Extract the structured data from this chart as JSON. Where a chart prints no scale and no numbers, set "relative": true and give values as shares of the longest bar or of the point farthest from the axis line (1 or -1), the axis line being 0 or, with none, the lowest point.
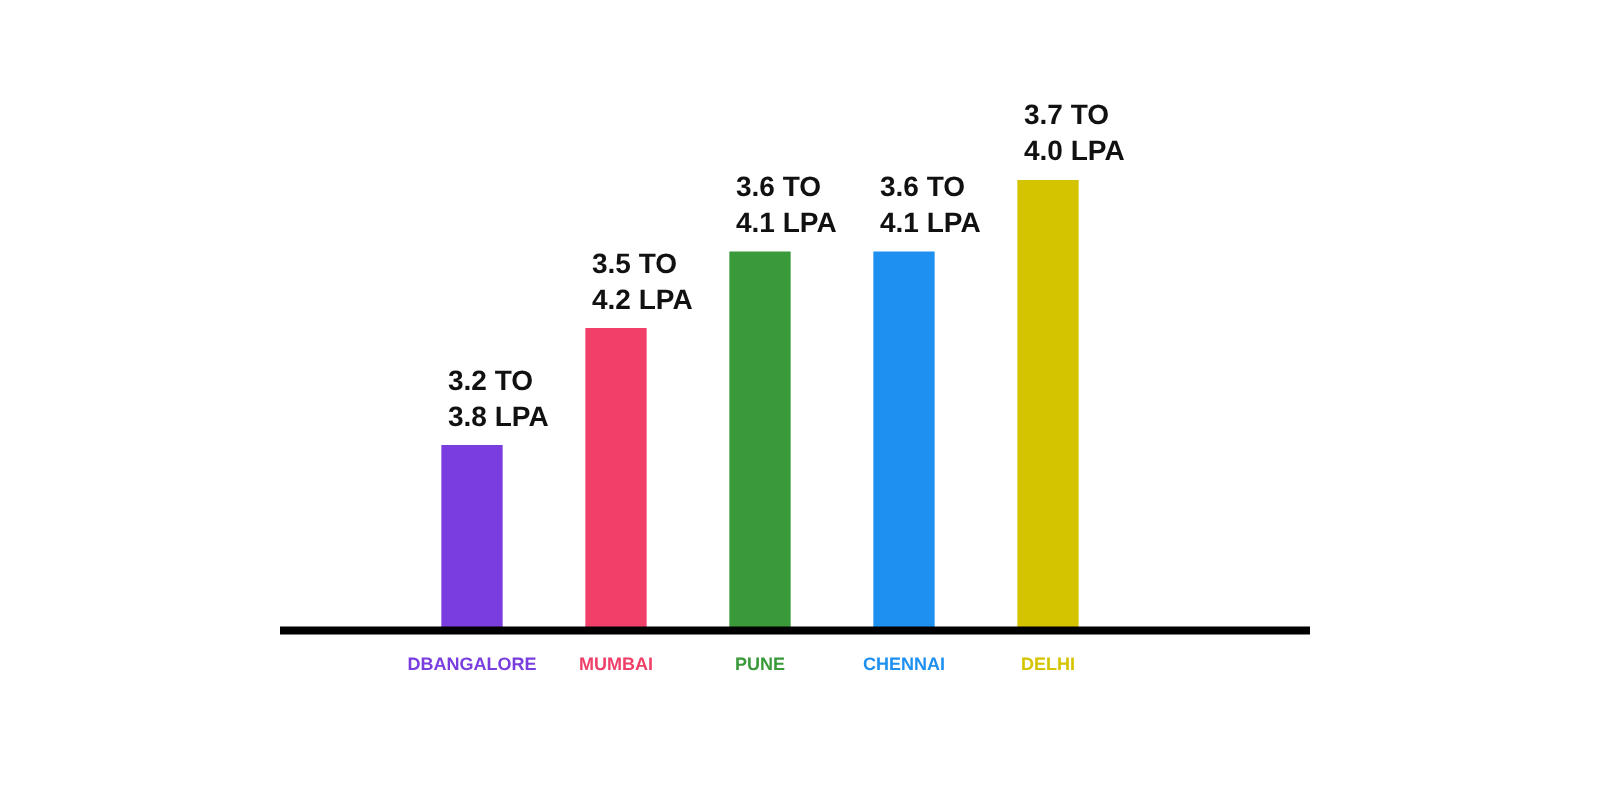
{
  "chart_data": {
    "type": "bar",
    "relative": true,
    "categories": [
      "DBANGALORE",
      "MUMBAI",
      "PUNE",
      "CHENNAI",
      "DELHI"
    ],
    "values": [
      0.41,
      0.67,
      0.84,
      0.84,
      1
    ],
    "colors": [
      "#7a3ee0",
      "#f0406a",
      "#3a9a3a",
      "#1e90f0",
      "#d4c400"
    ],
    "annotations": [
      {
        "text": "3.2 TO 3.8 LPA",
        "x": "DBANGALORE",
        "y": 0.41
      },
      {
        "text": "3.5 TO 4.2 LPA",
        "x": "MUMBAI",
        "y": 0.67
      },
      {
        "text": "3.6 TO 4.1 LPA",
        "x": "PUNE",
        "y": 0.84
      },
      {
        "text": "3.6 TO 4.1 LPA",
        "x": "CHENNAI",
        "y": 0.84
      },
      {
        "text": "3.7 TO 4.0 LPA",
        "x": "DELHI",
        "y": 1
      }
    ],
    "grid": false,
    "legend": false
  }
}
